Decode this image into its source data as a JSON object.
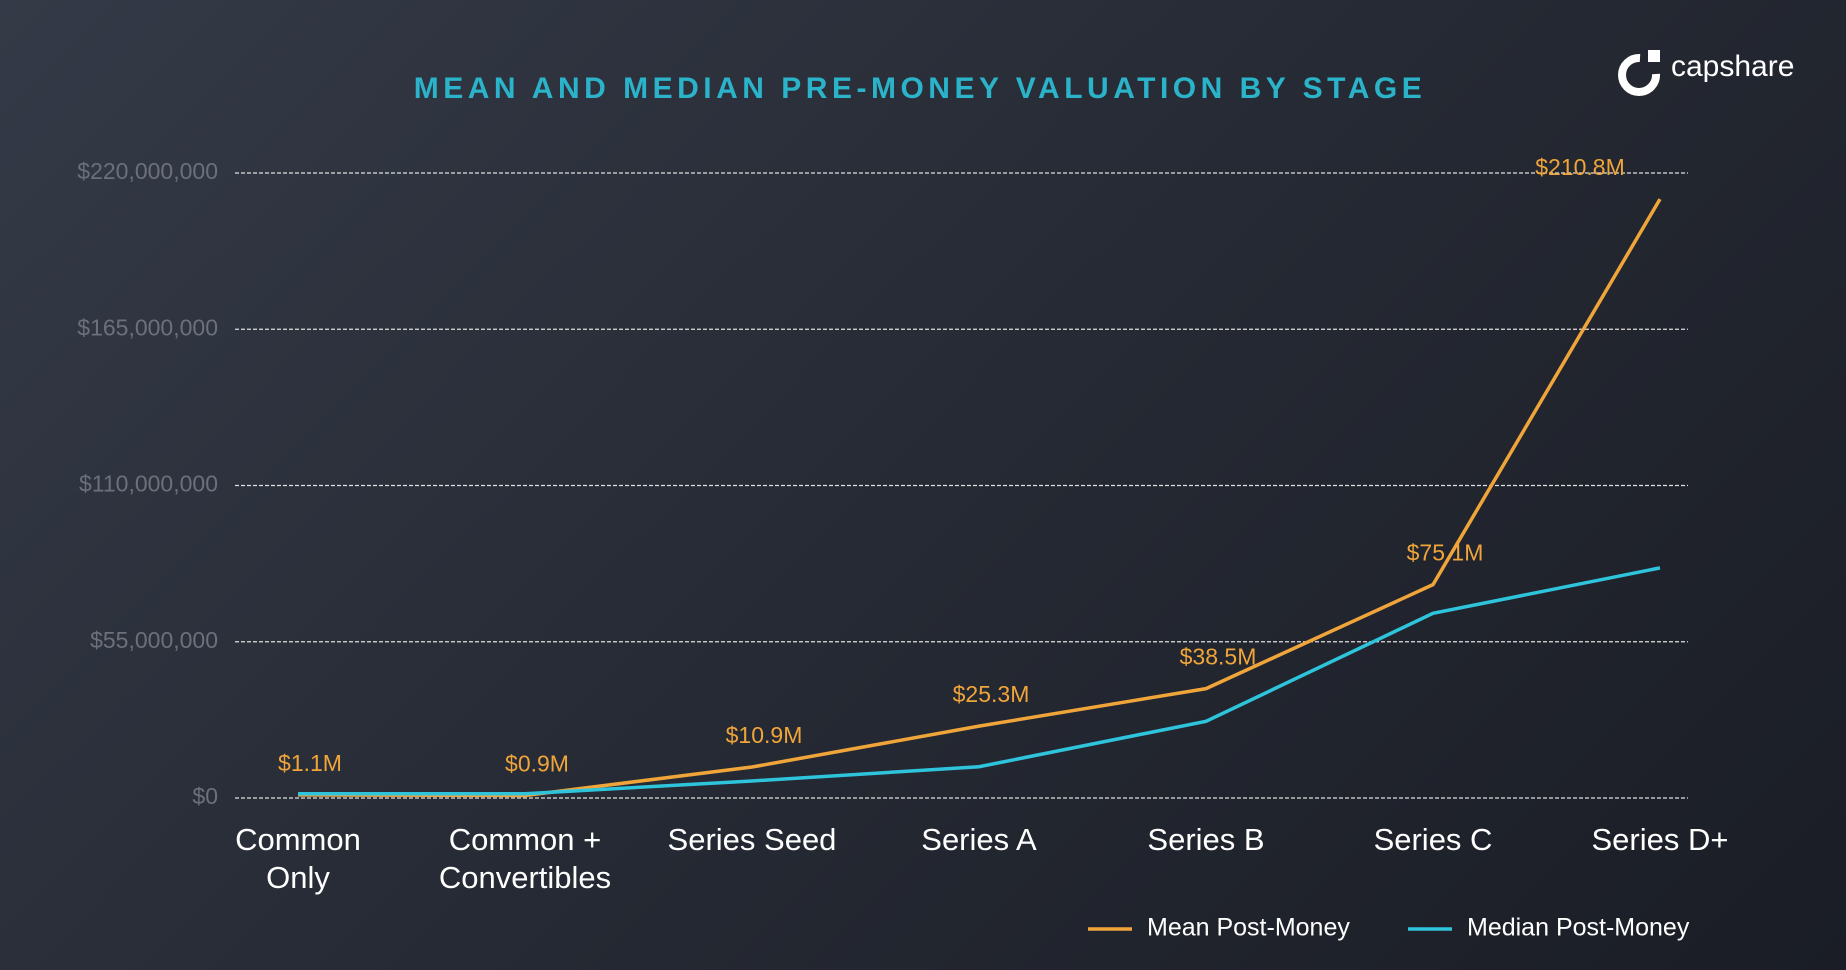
{
  "brand": "capshare",
  "chart_data": {
    "type": "line",
    "title": "MEAN AND MEDIAN PRE-MONEY VALUATION BY STAGE",
    "categories": [
      "Common Only",
      "Common + Convertibles",
      "Series Seed",
      "Series A",
      "Series B",
      "Series C",
      "Series D+"
    ],
    "series": [
      {
        "name": "Mean Post-Money",
        "color": "#f0a53a",
        "values": [
          1100000,
          900000,
          10900000,
          25300000,
          38500000,
          75100000,
          210800000
        ],
        "value_labels": [
          "$1.1M",
          "$0.9M",
          "$10.9M",
          "$25.3M",
          "$38.5M",
          "$75.1M",
          "$210.8M"
        ]
      },
      {
        "name": "Median Post-Money",
        "color": "#2ec4dc",
        "values": [
          1500000,
          1500000,
          6000000,
          11000000,
          27000000,
          65000000,
          81000000
        ]
      }
    ],
    "ylim": [
      0,
      220000000
    ],
    "yticks": [
      {
        "value": 0,
        "label": "$0"
      },
      {
        "value": 55000000,
        "label": "$55,000,000"
      },
      {
        "value": 110000000,
        "label": "$110,000,000"
      },
      {
        "value": 165000000,
        "label": "$165,000,000"
      },
      {
        "value": 220000000,
        "label": "$220,000,000"
      }
    ],
    "grid": true,
    "legend": "bottom-right"
  }
}
